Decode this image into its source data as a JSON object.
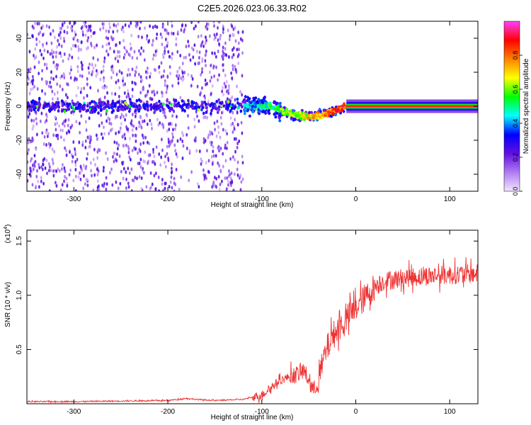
{
  "title": "C2E5.2026.023.06.33.R02",
  "chart_data": [
    {
      "type": "heatmap",
      "xlabel": "Height of straight line (km)",
      "ylabel": "Frequency (Hz)",
      "xlim": [
        -350,
        130
      ],
      "ylim": [
        -50,
        50
      ],
      "xticks": [
        -300,
        -200,
        -100,
        0,
        100
      ],
      "yticks": [
        -40,
        -20,
        0,
        20,
        40
      ],
      "noise_region": {
        "x_from": -350,
        "x_to": -120,
        "freq_range": [
          -50,
          50
        ]
      },
      "transition_region": {
        "x_from": -120,
        "x_to": -10
      },
      "carrier": {
        "x_from": -10,
        "x_to": 130,
        "freq": 0,
        "amplitude": 0.85
      },
      "colorbar": {
        "label": "Normalized spectral amplitude",
        "range": [
          0,
          1
        ],
        "ticks": [
          "0.0",
          "0.2",
          "0.4",
          "0.6",
          "0.8"
        ],
        "colors": [
          "#f2e6ff",
          "#b07cf2",
          "#6010e0",
          "#0000ff",
          "#00ffff",
          "#00ff00",
          "#ffff00",
          "#ff8000",
          "#ff0000",
          "#ff40ff"
        ]
      }
    },
    {
      "type": "line",
      "xlabel": "Height of straight line (km)",
      "ylabel": "SNR (10 * v/v)",
      "exponent_label": "(x10",
      "exponent": "4",
      "exponent_close": ")",
      "xlim": [
        -350,
        130
      ],
      "ylim": [
        0,
        1.6
      ],
      "xticks": [
        -300,
        -200,
        -100,
        0,
        100
      ],
      "yticks": [
        "0.5",
        "1.0",
        "1.5"
      ],
      "color": "#ee3333",
      "series": [
        {
          "name": "SNR",
          "x": [
            -350,
            -300,
            -250,
            -200,
            -180,
            -170,
            -150,
            -120,
            -100,
            -90,
            -80,
            -70,
            -60,
            -55,
            -50,
            -45,
            -40,
            -35,
            -30,
            -25,
            -20,
            -10,
            0,
            10,
            20,
            30,
            50,
            80,
            100,
            130
          ],
          "values": [
            0.02,
            0.02,
            0.025,
            0.03,
            0.05,
            0.04,
            0.03,
            0.04,
            0.08,
            0.15,
            0.22,
            0.25,
            0.28,
            0.3,
            0.22,
            0.12,
            0.2,
            0.38,
            0.52,
            0.62,
            0.68,
            0.78,
            0.88,
            0.98,
            1.08,
            1.13,
            1.16,
            1.18,
            1.19,
            1.2
          ]
        }
      ]
    }
  ]
}
